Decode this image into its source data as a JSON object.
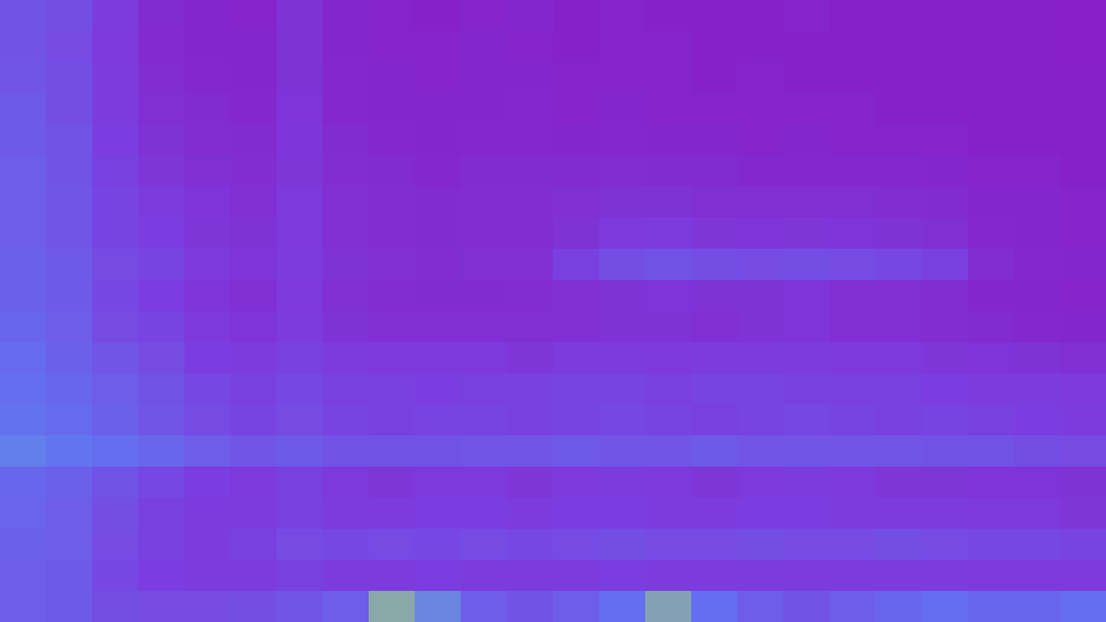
{
  "chart_data": {
    "type": "heatmap",
    "cells": [
      [
        0.45,
        0.42,
        0.3,
        0.16,
        0.12,
        0.1,
        0.22,
        0.12,
        0.1,
        0.08,
        0.1,
        0.12,
        0.08,
        0.1,
        0.08,
        0.06,
        0.08,
        0.1,
        0.06,
        0.08,
        0.06,
        0.08,
        0.06,
        0.05
      ],
      [
        0.45,
        0.4,
        0.28,
        0.15,
        0.12,
        0.12,
        0.22,
        0.12,
        0.1,
        0.1,
        0.12,
        0.1,
        0.08,
        0.1,
        0.1,
        0.08,
        0.08,
        0.08,
        0.08,
        0.06,
        0.08,
        0.06,
        0.06,
        0.05
      ],
      [
        0.46,
        0.42,
        0.3,
        0.18,
        0.14,
        0.12,
        0.22,
        0.14,
        0.12,
        0.1,
        0.12,
        0.12,
        0.1,
        0.1,
        0.1,
        0.08,
        0.1,
        0.08,
        0.08,
        0.08,
        0.06,
        0.08,
        0.06,
        0.06
      ],
      [
        0.48,
        0.42,
        0.3,
        0.2,
        0.16,
        0.14,
        0.24,
        0.14,
        0.12,
        0.12,
        0.12,
        0.14,
        0.1,
        0.12,
        0.1,
        0.1,
        0.1,
        0.1,
        0.1,
        0.08,
        0.08,
        0.08,
        0.06,
        0.06
      ],
      [
        0.48,
        0.44,
        0.32,
        0.22,
        0.18,
        0.16,
        0.25,
        0.16,
        0.14,
        0.12,
        0.14,
        0.14,
        0.12,
        0.14,
        0.12,
        0.12,
        0.1,
        0.12,
        0.1,
        0.1,
        0.1,
        0.08,
        0.08,
        0.06
      ],
      [
        0.5,
        0.45,
        0.34,
        0.26,
        0.2,
        0.18,
        0.26,
        0.18,
        0.16,
        0.14,
        0.16,
        0.16,
        0.16,
        0.18,
        0.16,
        0.16,
        0.14,
        0.14,
        0.14,
        0.14,
        0.12,
        0.1,
        0.1,
        0.08
      ],
      [
        0.5,
        0.46,
        0.36,
        0.3,
        0.24,
        0.2,
        0.28,
        0.2,
        0.18,
        0.16,
        0.18,
        0.18,
        0.2,
        0.22,
        0.22,
        0.2,
        0.2,
        0.2,
        0.2,
        0.18,
        0.16,
        0.12,
        0.12,
        0.1
      ],
      [
        0.5,
        0.46,
        0.36,
        0.32,
        0.26,
        0.22,
        0.28,
        0.2,
        0.18,
        0.16,
        0.18,
        0.18,
        0.22,
        0.28,
        0.3,
        0.26,
        0.24,
        0.26,
        0.24,
        0.22,
        0.2,
        0.14,
        0.12,
        0.1
      ],
      [
        0.52,
        0.48,
        0.4,
        0.36,
        0.28,
        0.24,
        0.3,
        0.22,
        0.2,
        0.18,
        0.2,
        0.2,
        0.34,
        0.42,
        0.44,
        0.42,
        0.4,
        0.42,
        0.4,
        0.38,
        0.34,
        0.18,
        0.14,
        0.12
      ],
      [
        0.52,
        0.48,
        0.38,
        0.32,
        0.24,
        0.2,
        0.28,
        0.2,
        0.18,
        0.16,
        0.16,
        0.18,
        0.2,
        0.22,
        0.24,
        0.22,
        0.22,
        0.24,
        0.2,
        0.2,
        0.18,
        0.12,
        0.12,
        0.1
      ],
      [
        0.55,
        0.5,
        0.4,
        0.36,
        0.28,
        0.24,
        0.3,
        0.22,
        0.2,
        0.2,
        0.2,
        0.2,
        0.2,
        0.22,
        0.22,
        0.2,
        0.22,
        0.24,
        0.2,
        0.2,
        0.18,
        0.16,
        0.14,
        0.12
      ],
      [
        0.58,
        0.52,
        0.46,
        0.4,
        0.32,
        0.3,
        0.34,
        0.3,
        0.28,
        0.28,
        0.28,
        0.26,
        0.3,
        0.3,
        0.28,
        0.3,
        0.3,
        0.3,
        0.28,
        0.28,
        0.26,
        0.24,
        0.22,
        0.2
      ],
      [
        0.6,
        0.56,
        0.5,
        0.44,
        0.38,
        0.34,
        0.38,
        0.34,
        0.34,
        0.32,
        0.34,
        0.34,
        0.36,
        0.36,
        0.34,
        0.36,
        0.36,
        0.34,
        0.34,
        0.34,
        0.32,
        0.3,
        0.3,
        0.28
      ],
      [
        0.62,
        0.58,
        0.52,
        0.46,
        0.4,
        0.36,
        0.4,
        0.36,
        0.34,
        0.36,
        0.36,
        0.34,
        0.36,
        0.38,
        0.36,
        0.34,
        0.36,
        0.38,
        0.36,
        0.34,
        0.36,
        0.34,
        0.32,
        0.3
      ],
      [
        0.68,
        0.64,
        0.6,
        0.56,
        0.5,
        0.46,
        0.48,
        0.44,
        0.44,
        0.44,
        0.46,
        0.46,
        0.48,
        0.46,
        0.46,
        0.48,
        0.46,
        0.46,
        0.46,
        0.46,
        0.44,
        0.44,
        0.42,
        0.4
      ],
      [
        0.56,
        0.52,
        0.44,
        0.38,
        0.32,
        0.28,
        0.34,
        0.28,
        0.26,
        0.28,
        0.28,
        0.26,
        0.28,
        0.3,
        0.28,
        0.26,
        0.28,
        0.3,
        0.28,
        0.26,
        0.26,
        0.24,
        0.24,
        0.22
      ],
      [
        0.54,
        0.5,
        0.42,
        0.34,
        0.3,
        0.3,
        0.34,
        0.3,
        0.3,
        0.32,
        0.32,
        0.3,
        0.32,
        0.32,
        0.3,
        0.3,
        0.32,
        0.32,
        0.3,
        0.3,
        0.3,
        0.28,
        0.28,
        0.26
      ],
      [
        0.52,
        0.5,
        0.4,
        0.34,
        0.3,
        0.34,
        0.4,
        0.38,
        0.4,
        0.38,
        0.4,
        0.38,
        0.4,
        0.42,
        0.4,
        0.4,
        0.42,
        0.4,
        0.4,
        0.42,
        0.4,
        0.38,
        0.38,
        0.36
      ],
      [
        0.5,
        0.48,
        0.38,
        0.32,
        0.3,
        0.3,
        0.34,
        0.3,
        0.3,
        0.32,
        0.3,
        0.3,
        0.3,
        0.32,
        0.3,
        0.3,
        0.3,
        0.3,
        0.3,
        0.3,
        0.3,
        0.28,
        0.28,
        0.28
      ],
      [
        0.5,
        0.48,
        0.42,
        0.4,
        0.4,
        0.42,
        0.46,
        0.5,
        0.8,
        0.7,
        0.5,
        0.45,
        0.5,
        0.6,
        0.78,
        0.6,
        0.5,
        0.45,
        0.5,
        0.55,
        0.6,
        0.55,
        0.55,
        0.6
      ]
    ],
    "color_domain": [
      0,
      1
    ],
    "colors": [
      "#8a18c2",
      "#7a3fe0",
      "#5f7af2",
      "#c8ec3a"
    ],
    "tick_labels": false
  }
}
